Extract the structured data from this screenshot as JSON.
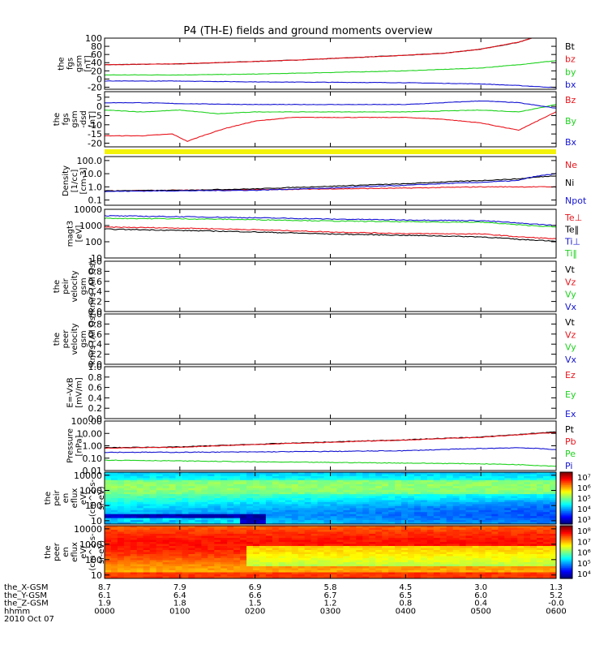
{
  "title": "P4 (TH-E) fields and ground moments overview",
  "colors": {
    "black": "#000000",
    "red": "#e8141c",
    "green": "#1ed21e",
    "blue": "#1414d2",
    "yellow": "#f2f20a"
  },
  "chart_data": [
    {
      "type": "line",
      "ylabel": [
        "the",
        "fgs",
        "gsm",
        "[nT]"
      ],
      "ylim": [
        -25,
        100
      ],
      "yticks": [
        -20,
        0,
        20,
        40,
        60,
        80,
        100
      ],
      "series": [
        {
          "name": "Bt",
          "color": "black",
          "x": [
            0,
            0.5,
            1,
            1.5,
            2,
            2.5,
            3,
            3.5,
            4,
            4.5,
            5,
            5.5,
            6
          ],
          "y": [
            35,
            36,
            37,
            40,
            43,
            46,
            50,
            54,
            58,
            63,
            73,
            90,
            118
          ]
        },
        {
          "name": "bz",
          "color": "red",
          "x": [
            0,
            0.5,
            1,
            1.5,
            2,
            2.5,
            3,
            3.5,
            4,
            4.5,
            5,
            5.5,
            6
          ],
          "y": [
            35,
            36,
            37,
            40,
            43,
            46,
            50,
            54,
            58,
            63,
            73,
            90,
            118
          ]
        },
        {
          "name": "by",
          "color": "green",
          "x": [
            0,
            1,
            2,
            3,
            4,
            5,
            5.5,
            6
          ],
          "y": [
            10,
            10,
            12,
            16,
            20,
            27,
            35,
            45
          ]
        },
        {
          "name": "bx",
          "color": "blue",
          "x": [
            0,
            1,
            2,
            3,
            4,
            5,
            5.5,
            6
          ],
          "y": [
            -5,
            -5,
            -7,
            -8,
            -9,
            -12,
            -16,
            -21
          ]
        }
      ]
    },
    {
      "type": "line",
      "ylabel": [
        "the",
        "fgs",
        "gsm",
        "-dsd",
        "[nT]"
      ],
      "ylim": [
        -22,
        8
      ],
      "yticks": [
        -20,
        -15,
        -10,
        -5,
        0,
        5
      ],
      "series": [
        {
          "name": "Bz",
          "color": "red",
          "x": [
            0,
            0.5,
            0.9,
            1.1,
            1.3,
            1.6,
            2,
            2.5,
            3,
            3.5,
            4,
            4.5,
            5,
            5.5,
            6
          ],
          "y": [
            -16,
            -16,
            -15,
            -19,
            -16,
            -12,
            -8,
            -6,
            -6,
            -6,
            -6,
            -7,
            -9,
            -13,
            -3
          ]
        },
        {
          "name": "By",
          "color": "green",
          "x": [
            0,
            0.5,
            1,
            1.5,
            2,
            3,
            4,
            5,
            5.5,
            6
          ],
          "y": [
            -2,
            -3,
            -2,
            -4,
            -3,
            -3,
            -3,
            -2,
            -3,
            1
          ]
        },
        {
          "name": "Bx",
          "color": "blue",
          "x": [
            0,
            0.5,
            1,
            2,
            3,
            4,
            4.5,
            5,
            5.5,
            6
          ],
          "y": [
            2,
            2,
            1.5,
            1,
            1,
            1,
            2,
            3,
            2,
            -1
          ]
        }
      ]
    },
    {
      "type": "line",
      "ylabel": [
        "Density",
        "[1/cc]",
        "[cm-3]"
      ],
      "log": true,
      "ylim": [
        0.04,
        200
      ],
      "yticks": [
        0.1,
        1.0,
        10.0,
        100.0
      ],
      "ytick_labels": [
        "0.1",
        "1.0",
        "10.0",
        "100.0"
      ],
      "series": [
        {
          "name": "Ne",
          "color": "red",
          "x": [
            0,
            1,
            2,
            3,
            4,
            5,
            6
          ],
          "y": [
            0.5,
            0.55,
            0.6,
            0.7,
            0.8,
            1.0,
            1.0
          ]
        },
        {
          "name": "Ni",
          "color": "black",
          "x": [
            0,
            1,
            2,
            3,
            4,
            5,
            5.5,
            6
          ],
          "y": [
            0.5,
            0.55,
            0.7,
            1.1,
            1.7,
            3.0,
            4.0,
            7.0
          ]
        },
        {
          "name": "Npot",
          "color": "blue",
          "x": [
            0,
            1,
            2,
            3,
            4,
            5,
            5.5,
            6
          ],
          "y": [
            0.45,
            0.5,
            0.55,
            0.8,
            1.3,
            2.2,
            3.0,
            10.0
          ]
        }
      ]
    },
    {
      "type": "line",
      "ylabel": [
        "magt3",
        "[eV]"
      ],
      "log": true,
      "ylim": [
        10,
        10000
      ],
      "yticks": [
        10,
        100,
        1000,
        10000
      ],
      "ytick_labels": [
        "10",
        "100",
        "1000",
        "10000"
      ],
      "series": [
        {
          "name": "Te⊥",
          "color": "red",
          "x": [
            0,
            1,
            2,
            3,
            4,
            5,
            5.5,
            6
          ],
          "y": [
            800,
            700,
            550,
            400,
            320,
            300,
            200,
            150
          ]
        },
        {
          "name": "Te‖",
          "color": "black",
          "x": [
            0,
            1,
            2,
            3,
            4,
            5,
            5.5,
            6
          ],
          "y": [
            600,
            500,
            400,
            300,
            250,
            200,
            140,
            110
          ]
        },
        {
          "name": "Ti⊥",
          "color": "blue",
          "x": [
            0,
            1,
            2,
            3,
            4,
            5,
            5.5,
            6
          ],
          "y": [
            4000,
            3500,
            3000,
            2500,
            2200,
            2000,
            1400,
            1000
          ]
        },
        {
          "name": "Ti‖",
          "color": "green",
          "x": [
            0,
            1,
            2,
            3,
            4,
            5,
            5.5,
            6
          ],
          "y": [
            2800,
            2600,
            2300,
            1900,
            1700,
            1600,
            1100,
            800
          ]
        }
      ]
    },
    {
      "type": "line",
      "ylabel": [
        "the",
        "peir",
        "velocity",
        "gsm",
        "km/s (All Qs)"
      ],
      "ylim": [
        0,
        1
      ],
      "yticks": [
        0,
        0.2,
        0.4,
        0.6,
        0.8,
        1.0
      ],
      "ytick_labels": [
        "0.0",
        "0.2",
        "0.4",
        "0.6",
        "0.8",
        "1.0"
      ],
      "series": [
        {
          "name": "Vt",
          "color": "black",
          "x": [],
          "y": []
        },
        {
          "name": "Vz",
          "color": "red",
          "x": [],
          "y": []
        },
        {
          "name": "Vy",
          "color": "green",
          "x": [],
          "y": []
        },
        {
          "name": "Vx",
          "color": "blue",
          "x": [],
          "y": []
        }
      ]
    },
    {
      "type": "line",
      "ylabel": [
        "the",
        "peer",
        "velocity",
        "gsm",
        "km/s (All Qs)"
      ],
      "ylim": [
        0,
        1
      ],
      "yticks": [
        0,
        0.2,
        0.4,
        0.6,
        0.8,
        1.0
      ],
      "ytick_labels": [
        "0.0",
        "0.2",
        "0.4",
        "0.6",
        "0.8",
        "1.0"
      ],
      "series": [
        {
          "name": "Vt",
          "color": "black",
          "x": [],
          "y": []
        },
        {
          "name": "Vz",
          "color": "red",
          "x": [],
          "y": []
        },
        {
          "name": "Vy",
          "color": "green",
          "x": [],
          "y": []
        },
        {
          "name": "Vx",
          "color": "blue",
          "x": [],
          "y": []
        }
      ]
    },
    {
      "type": "line",
      "ylabel": [
        "E=-VxB",
        "[mV/m]"
      ],
      "ylim": [
        0,
        1
      ],
      "yticks": [
        0,
        0.2,
        0.4,
        0.6,
        0.8,
        1.0
      ],
      "ytick_labels": [
        "0.0",
        "0.2",
        "0.4",
        "0.6",
        "0.8",
        "1.0"
      ],
      "series": [
        {
          "name": "Ez",
          "color": "red",
          "x": [],
          "y": []
        },
        {
          "name": "Ey",
          "color": "green",
          "x": [],
          "y": []
        },
        {
          "name": "Ex",
          "color": "blue",
          "x": [],
          "y": []
        }
      ]
    },
    {
      "type": "line",
      "ylabel": [
        "Pressure",
        "[nPa]"
      ],
      "log": true,
      "ylim": [
        0.01,
        100
      ],
      "yticks": [
        0.01,
        0.1,
        1,
        10,
        100
      ],
      "ytick_labels": [
        "0.01",
        "0.10",
        "1.00",
        "10.00",
        "100.00"
      ],
      "series": [
        {
          "name": "Pt",
          "color": "black",
          "x": [
            0,
            1,
            2,
            3,
            4,
            5,
            5.5,
            6
          ],
          "y": [
            0.7,
            0.8,
            1.3,
            2.0,
            3.0,
            5.0,
            8.0,
            13.0
          ]
        },
        {
          "name": "Pb",
          "color": "red",
          "x": [
            0,
            1,
            2,
            3,
            4,
            5,
            5.5,
            6
          ],
          "y": [
            0.65,
            0.75,
            1.25,
            1.9,
            2.9,
            4.8,
            7.5,
            12.0
          ]
        },
        {
          "name": "Pe",
          "color": "green",
          "x": [
            0,
            1,
            2,
            3,
            4,
            5,
            5.5,
            6
          ],
          "y": [
            0.07,
            0.06,
            0.05,
            0.045,
            0.04,
            0.035,
            0.03,
            0.022
          ]
        },
        {
          "name": "Pi",
          "color": "blue",
          "x": [
            0,
            1,
            2,
            3,
            4,
            5,
            5.5,
            6
          ],
          "y": [
            0.3,
            0.3,
            0.32,
            0.35,
            0.4,
            0.6,
            0.7,
            0.5
          ]
        }
      ]
    },
    {
      "type": "heatmap",
      "ylabel": [
        "the",
        "peir",
        "en",
        "eflux",
        "eV/",
        "(cm^2-s-",
        "sr-eV)"
      ],
      "log": true,
      "ylim": [
        6,
        16000
      ],
      "yticks": [
        10,
        100,
        1000,
        10000
      ],
      "ytick_labels": [
        "10",
        "100",
        "1000",
        "10000"
      ],
      "colorbar_labels": [
        "10³",
        "10⁴",
        "10⁵",
        "10⁶",
        "10⁷"
      ]
    },
    {
      "type": "heatmap",
      "ylabel": [
        "the",
        "peer",
        "en",
        "eflux",
        "eV/",
        "(cm^2-s-",
        "sr-eV)"
      ],
      "log": true,
      "ylim": [
        6,
        16000
      ],
      "yticks": [
        10,
        100,
        1000,
        10000
      ],
      "ytick_labels": [
        "10",
        "100",
        "1000",
        "10000"
      ],
      "colorbar_labels": [
        "10⁴",
        "10⁵",
        "10⁶",
        "10⁷",
        "10⁸"
      ]
    }
  ],
  "x_axis": {
    "range": [
      0,
      6
    ],
    "rows": [
      {
        "label": "the_X-GSM",
        "values": [
          "8.7",
          "7.9",
          "6.9",
          "5.8",
          "4.5",
          "3.0",
          "1.3"
        ]
      },
      {
        "label": "the_Y-GSM",
        "values": [
          "6.1",
          "6.4",
          "6.6",
          "6.7",
          "6.5",
          "6.0",
          "5.2"
        ]
      },
      {
        "label": "the_Z-GSM",
        "values": [
          "1.9",
          "1.8",
          "1.5",
          "1.2",
          "0.8",
          "0.4",
          "-0.0"
        ]
      },
      {
        "label": "hhmm",
        "values": [
          "0000",
          "0100",
          "0200",
          "0300",
          "0400",
          "0500",
          "0600"
        ]
      }
    ],
    "date": "2010 Oct 07"
  }
}
